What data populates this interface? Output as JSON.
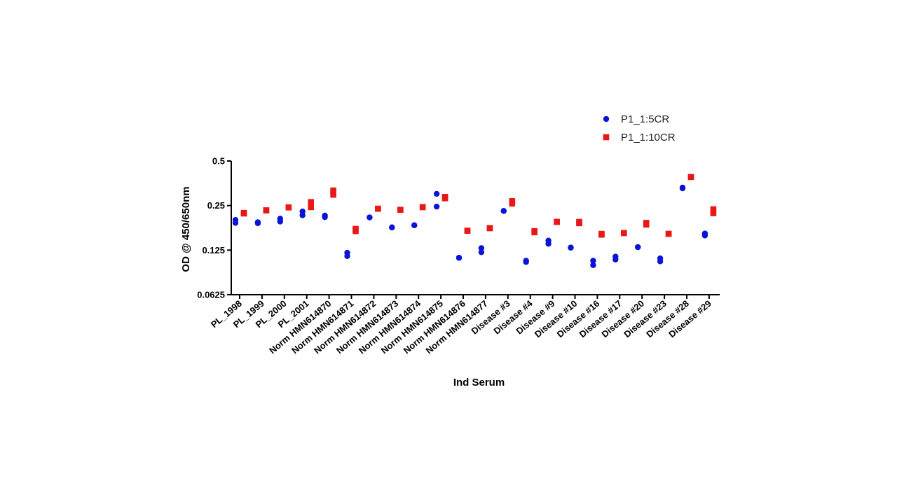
{
  "chart_data": {
    "type": "scatter",
    "xlabel": "Ind Serum",
    "ylabel": "OD @ 450/650nm",
    "yscale": "log2",
    "ylim": [
      0.0625,
      0.5
    ],
    "yticks": [
      {
        "value": 0.0625,
        "label": "0.0625"
      },
      {
        "value": 0.125,
        "label": "0.125"
      },
      {
        "value": 0.25,
        "label": "0.25"
      },
      {
        "value": 0.5,
        "label": "0.5"
      }
    ],
    "legend_position": "top-right",
    "grid": false,
    "categories": [
      "PL_1998",
      "PL_1999",
      "PL_2000",
      "PL_2001",
      "Norm HMN614870",
      "Norm HMN614871",
      "Norm HMN614872",
      "Norm HMN614873",
      "Norm HMN614874",
      "Norm HMN614875",
      "Norm HMN614876",
      "Norm HMN614877",
      "Disease #3",
      "Disease #4",
      "Disease #9",
      "Disease #10",
      "Disease #16",
      "Disease #17",
      "Disease #20",
      "Disease #23",
      "Disease #28",
      "Disease #29"
    ],
    "series": [
      {
        "name": "P1_1:5CR",
        "color": "#0a14d6",
        "marker": "circle",
        "values": [
          [
            0.2,
            0.191
          ],
          [
            0.193,
            0.19
          ],
          [
            0.204,
            0.195
          ],
          [
            0.228,
            0.215
          ],
          [
            0.214,
            0.209
          ],
          [
            0.12,
            0.114
          ],
          [
            0.208,
            0.208
          ],
          [
            0.178,
            0.178
          ],
          [
            0.184,
            0.184
          ],
          [
            0.3,
            0.246
          ],
          [
            0.111,
            0.111
          ],
          [
            0.129,
            0.121
          ],
          [
            0.23,
            0.23
          ],
          [
            0.106,
            0.104
          ],
          [
            0.145,
            0.138
          ],
          [
            0.13,
            0.13
          ],
          [
            0.106,
            0.099
          ],
          [
            0.113,
            0.108
          ],
          [
            0.131,
            0.131
          ],
          [
            0.11,
            0.105
          ],
          [
            0.331,
            0.327
          ],
          [
            0.162,
            0.157
          ]
        ]
      },
      {
        "name": "P1_1:10CR",
        "color": "#e81818",
        "marker": "square",
        "values": [
          [
            0.223,
            0.221
          ],
          [
            0.232,
            0.232
          ],
          [
            0.243,
            0.243
          ],
          [
            0.264,
            0.244
          ],
          [
            0.316,
            0.296
          ],
          [
            0.174,
            0.168
          ],
          [
            0.238,
            0.238
          ],
          [
            0.234,
            0.234
          ],
          [
            0.244,
            0.244
          ],
          [
            0.286,
            0.28
          ],
          [
            0.169,
            0.169
          ],
          [
            0.176,
            0.176
          ],
          [
            0.268,
            0.258
          ],
          [
            0.168,
            0.165
          ],
          [
            0.194,
            0.194
          ],
          [
            0.194,
            0.19
          ],
          [
            0.161,
            0.159
          ],
          [
            0.163,
            0.163
          ],
          [
            0.191,
            0.186
          ],
          [
            0.161,
            0.161
          ],
          [
            0.39,
            0.39
          ],
          [
            0.236,
            0.222
          ]
        ]
      }
    ]
  }
}
